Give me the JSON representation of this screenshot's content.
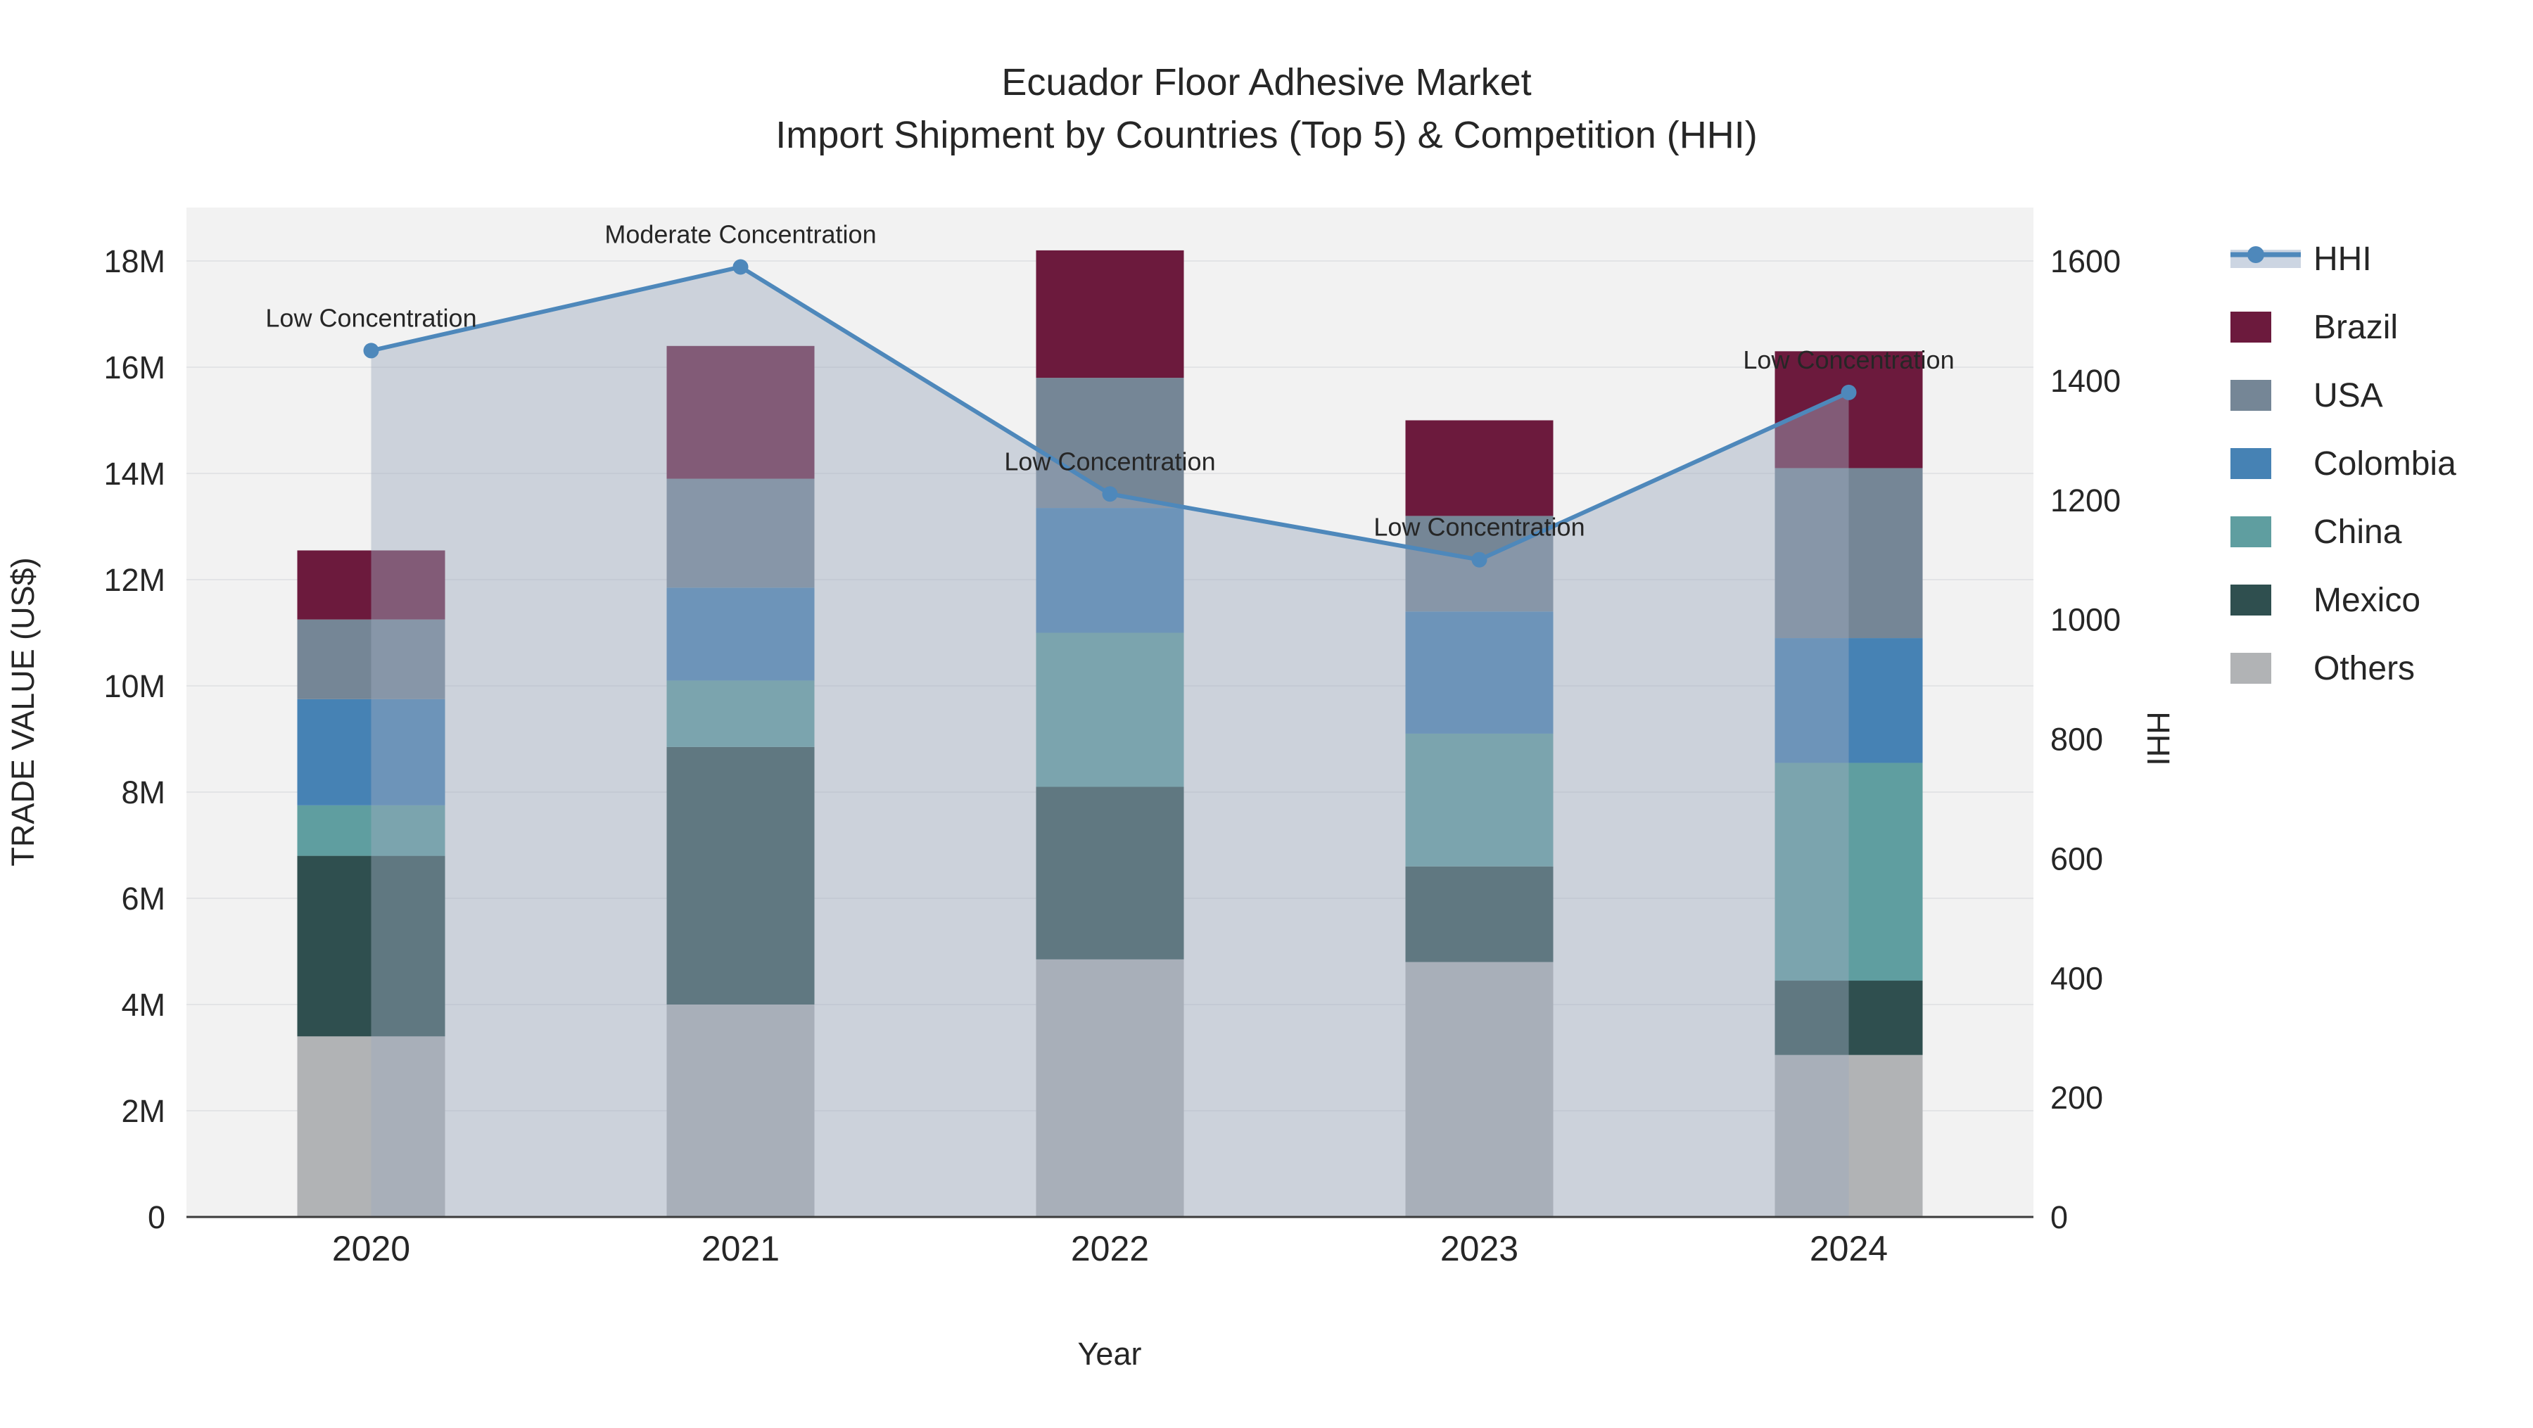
{
  "figure": {
    "title_line1": "Ecuador Floor Adhesive Market",
    "title_line2": "Import Shipment by Countries (Top 5) & Competition (HHI)"
  },
  "chart_data": {
    "type": "bar",
    "subtype": "stacked-bars-with-secondary-axis-line",
    "categories": [
      "2020",
      "2021",
      "2022",
      "2023",
      "2024"
    ],
    "bar_value_unit": "million US$",
    "series": [
      {
        "name": "Others",
        "color": "#b1b3b5",
        "values": [
          3.4,
          4.0,
          4.85,
          4.8,
          3.05
        ]
      },
      {
        "name": "Mexico",
        "color": "#2F4F4F",
        "values": [
          3.4,
          4.85,
          3.25,
          1.8,
          1.4
        ]
      },
      {
        "name": "China",
        "color": "#5F9EA0",
        "values": [
          0.95,
          1.25,
          2.9,
          2.5,
          4.1
        ]
      },
      {
        "name": "Colombia",
        "color": "#4682B4",
        "values": [
          2.0,
          1.75,
          2.35,
          2.3,
          2.35
        ]
      },
      {
        "name": "USA",
        "color": "#758696",
        "values": [
          1.5,
          2.05,
          2.45,
          1.8,
          3.2
        ]
      },
      {
        "name": "Brazil",
        "color": "#6C1A3D",
        "values": [
          1.3,
          2.5,
          2.4,
          1.8,
          2.2
        ]
      }
    ],
    "bar_totals": [
      12.55,
      16.4,
      18.2,
      15.0,
      16.3
    ],
    "hhi_line": {
      "name": "HHI",
      "values": [
        1450,
        1590,
        1210,
        1100,
        1380
      ],
      "color": "#4E88BB",
      "area_fill": "rgba(157,170,190,0.45)",
      "legend_band": "#ccd5e2",
      "marker": "circle"
    },
    "annotations": [
      {
        "category": "2020",
        "label": "Low Concentration"
      },
      {
        "category": "2021",
        "label": "Moderate Concentration"
      },
      {
        "category": "2022",
        "label": "Low Concentration"
      },
      {
        "category": "2023",
        "label": "Low Concentration"
      },
      {
        "category": "2024",
        "label": "Low Concentration"
      }
    ],
    "axes": {
      "left": {
        "title": "TRADE VALUE (US$)",
        "max": 18,
        "ticks": [
          {
            "v": 0,
            "label": "0"
          },
          {
            "v": 2,
            "label": "2M"
          },
          {
            "v": 4,
            "label": "4M"
          },
          {
            "v": 6,
            "label": "6M"
          },
          {
            "v": 8,
            "label": "8M"
          },
          {
            "v": 10,
            "label": "10M"
          },
          {
            "v": 12,
            "label": "12M"
          },
          {
            "v": 14,
            "label": "14M"
          },
          {
            "v": 16,
            "label": "16M"
          },
          {
            "v": 18,
            "label": "18M"
          }
        ]
      },
      "right": {
        "title": "HHI",
        "max": 1600,
        "ticks": [
          {
            "v": 0,
            "label": "0"
          },
          {
            "v": 200,
            "label": "200"
          },
          {
            "v": 400,
            "label": "400"
          },
          {
            "v": 600,
            "label": "600"
          },
          {
            "v": 800,
            "label": "800"
          },
          {
            "v": 1000,
            "label": "1000"
          },
          {
            "v": 1200,
            "label": "1200"
          },
          {
            "v": 1400,
            "label": "1400"
          },
          {
            "v": 1600,
            "label": "1600"
          }
        ]
      },
      "x": {
        "title": "Year"
      }
    },
    "legend_order": [
      "HHI",
      "Brazil",
      "USA",
      "Colombia",
      "China",
      "Mexico",
      "Others"
    ],
    "style": {
      "plot_bg": "#f2f2f2",
      "paper_bg": "#ffffff",
      "grid": "#e3e4e6",
      "axis_line": "#3b3b3b",
      "text": "#262626"
    }
  }
}
